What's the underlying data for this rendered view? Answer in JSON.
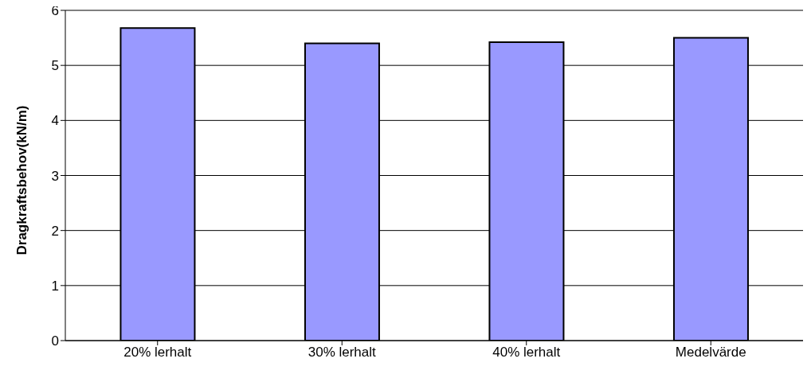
{
  "chart_data": {
    "type": "bar",
    "ylabel": "Dragkraftsbehov(kN/m)",
    "categories": [
      "20% lerhalt",
      "30% lerhalt",
      "40% lerhalt",
      "Medelvärde"
    ],
    "values": [
      5.68,
      5.4,
      5.42,
      5.5
    ],
    "color": "#9999ff",
    "ylim": [
      0,
      6
    ],
    "yticks": [
      0,
      1,
      2,
      3,
      4,
      5,
      6
    ],
    "grid": "y",
    "legend": false
  }
}
